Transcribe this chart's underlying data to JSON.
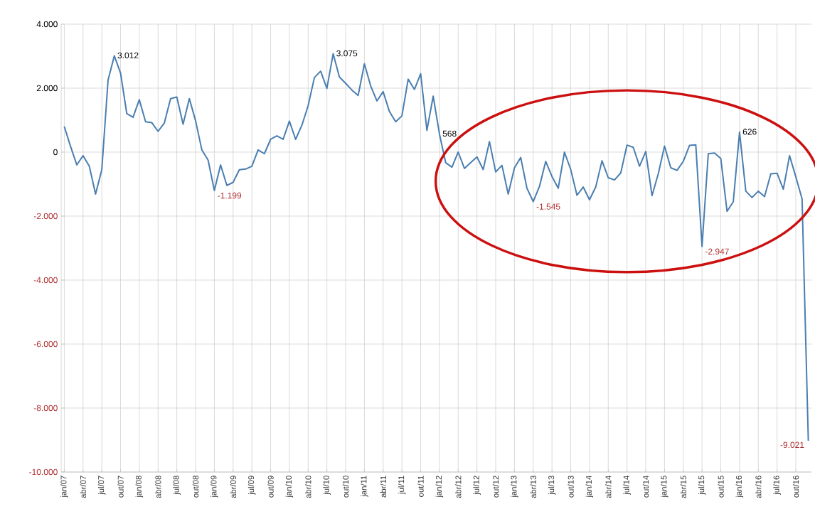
{
  "chart_data": {
    "type": "line",
    "categories": [
      "jan/07",
      null,
      null,
      "abr/07",
      null,
      null,
      "jul/07",
      null,
      null,
      "out/07",
      null,
      null,
      "jan/08",
      null,
      null,
      "abr/08",
      null,
      null,
      "jul/08",
      null,
      null,
      "out/08",
      null,
      null,
      "jan/09",
      null,
      null,
      "abr/09",
      null,
      null,
      "jul/09",
      null,
      null,
      "out/09",
      null,
      null,
      "jan/10",
      null,
      null,
      "abr/10",
      null,
      null,
      "jul/10",
      null,
      null,
      "out/10",
      null,
      null,
      "jan/11",
      null,
      null,
      "abr/11",
      null,
      null,
      "jul/11",
      null,
      null,
      "out/11",
      null,
      null,
      "jan/12",
      null,
      null,
      "abr/12",
      null,
      null,
      "jul/12",
      null,
      null,
      "out/12",
      null,
      null,
      "jan/13",
      null,
      null,
      "abr/13",
      null,
      null,
      "jul/13",
      null,
      null,
      "out/13",
      null,
      null,
      "jan/14",
      null,
      null,
      "abr/14",
      null,
      null,
      "jul/14",
      null,
      null,
      "out/14",
      null,
      null,
      "jan/15",
      null,
      null,
      "abr/15",
      null,
      null,
      "jul/15",
      null,
      null,
      "out/15",
      null,
      null,
      "jan/16",
      null,
      null,
      "abr/16",
      null,
      null,
      "jul/16",
      null,
      null,
      "out/16",
      null,
      null
    ],
    "series": [
      {
        "color": "#4a7eb0",
        "line_style": "solid",
        "values": [
          800,
          180,
          -400,
          -110,
          -440,
          -1310,
          -550,
          2250,
          3012,
          2470,
          1200,
          1090,
          1640,
          950,
          920,
          650,
          910,
          1670,
          1720,
          870,
          1670,
          980,
          70,
          -250,
          -1199,
          -400,
          -1040,
          -945,
          -550,
          -530,
          -440,
          70,
          -50,
          400,
          510,
          400,
          970,
          400,
          840,
          1450,
          2330,
          2530,
          1990,
          3075,
          2350,
          2150,
          1940,
          1770,
          2760,
          2070,
          1600,
          1890,
          1270,
          950,
          1130,
          2280,
          1960,
          2450,
          680,
          1750,
          568,
          -330,
          -470,
          0,
          -510,
          -330,
          -150,
          -545,
          330,
          -620,
          -415,
          -1310,
          -490,
          -170,
          -1130,
          -1545,
          -1070,
          -290,
          -760,
          -1130,
          0,
          -545,
          -1350,
          -1090,
          -1490,
          -1090,
          -270,
          -800,
          -870,
          -650,
          220,
          150,
          -440,
          20,
          -1360,
          -680,
          190,
          -490,
          -570,
          -290,
          210,
          230,
          -2947,
          -50,
          -30,
          -200,
          -1850,
          -1550,
          626,
          -1220,
          -1420,
          -1220,
          -1390,
          -680,
          -660,
          -1160,
          -110,
          -770,
          -1460,
          -9021
        ],
        "value_labels": [
          null,
          null,
          null,
          null,
          null,
          null,
          null,
          null,
          "3.012",
          null,
          null,
          null,
          null,
          null,
          null,
          null,
          null,
          null,
          null,
          null,
          null,
          null,
          null,
          null,
          "-1.199",
          null,
          null,
          null,
          null,
          null,
          null,
          null,
          null,
          null,
          null,
          null,
          null,
          null,
          null,
          null,
          null,
          null,
          null,
          "3.075",
          null,
          null,
          null,
          null,
          null,
          null,
          null,
          null,
          null,
          null,
          null,
          null,
          null,
          null,
          null,
          null,
          "568",
          null,
          null,
          null,
          null,
          null,
          null,
          null,
          null,
          null,
          null,
          null,
          null,
          null,
          null,
          "-1.545",
          null,
          null,
          null,
          null,
          null,
          null,
          null,
          null,
          null,
          null,
          null,
          null,
          null,
          null,
          null,
          null,
          null,
          null,
          null,
          null,
          null,
          null,
          null,
          null,
          null,
          null,
          "-2.947",
          null,
          null,
          null,
          null,
          null,
          "626",
          null,
          null,
          null,
          null,
          null,
          null,
          null,
          null,
          null,
          null,
          "-9.021"
        ]
      }
    ],
    "ylim": [
      -10000,
      4000
    ],
    "yticks": [
      {
        "value": 4000,
        "label": "4.000"
      },
      {
        "value": 2000,
        "label": "2.000"
      },
      {
        "value": 0,
        "label": "0"
      },
      {
        "value": -2000,
        "label": "-2.000"
      },
      {
        "value": -4000,
        "label": "-4.000"
      },
      {
        "value": -6000,
        "label": "-6.000"
      },
      {
        "value": -8000,
        "label": "-8.000"
      },
      {
        "value": -10000,
        "label": "-10.000"
      }
    ],
    "grid": true
  }
}
